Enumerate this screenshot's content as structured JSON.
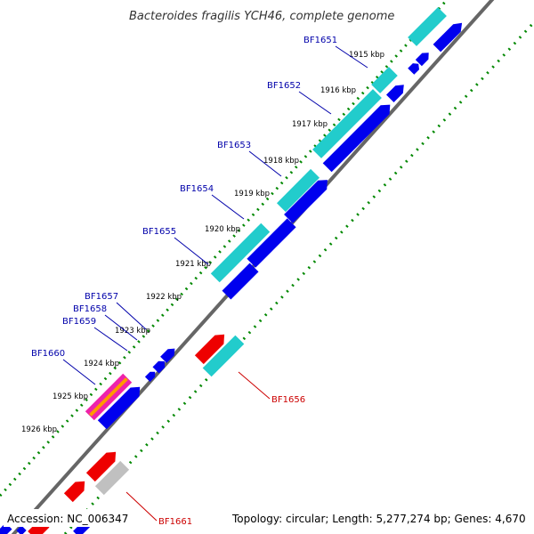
{
  "title": "Bacteroides fragilis YCH46, complete genome",
  "footer": {
    "accession": "Accession: NC_006347",
    "summary": "Topology: circular; Length: 5,277,274 bp; Genes: 4,670"
  },
  "colors": {
    "forward_gene": "#0000ee",
    "reverse_gene": "#ee0000",
    "cds_feature": "#22cccc",
    "pseudo_feature": "#c0c0c0",
    "rna_feature": "#ee22aa",
    "orange_feature": "#ff9900",
    "label_forward": "#0000aa",
    "label_reverse": "#cc0000",
    "tick_green": "#008800",
    "backbone": "#666666"
  },
  "kbp_ticks": [
    "1915 kbp",
    "1916 kbp",
    "1917 kbp",
    "1918 kbp",
    "1919 kbp",
    "1920 kbp",
    "1921 kbp",
    "1922 kbp",
    "1923 kbp",
    "1924 kbp",
    "1925 kbp",
    "1926 kbp"
  ],
  "gene_labels": [
    {
      "label": "BF1651",
      "strand": "forward"
    },
    {
      "label": "BF1652",
      "strand": "forward"
    },
    {
      "label": "BF1653",
      "strand": "forward"
    },
    {
      "label": "BF1654",
      "strand": "forward"
    },
    {
      "label": "BF1655",
      "strand": "forward"
    },
    {
      "label": "BF1657",
      "strand": "forward"
    },
    {
      "label": "BF1658",
      "strand": "forward"
    },
    {
      "label": "BF1659",
      "strand": "forward"
    },
    {
      "label": "BF1660",
      "strand": "forward"
    },
    {
      "label": "BF1656",
      "strand": "reverse"
    },
    {
      "label": "BF1661",
      "strand": "reverse"
    }
  ]
}
